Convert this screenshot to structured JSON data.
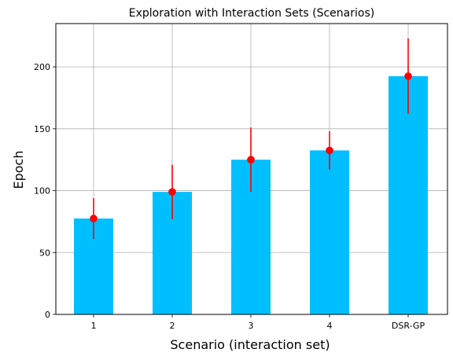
{
  "chart_data": {
    "type": "bar",
    "title": "Exploration with Interaction Sets (Scenarios)",
    "xlabel": "Scenario (interaction set)",
    "ylabel": "Epoch",
    "categories": [
      "1",
      "2",
      "3",
      "4",
      "DSR-GP"
    ],
    "values": [
      77.5,
      99,
      125,
      132.5,
      192.5
    ],
    "error_bars": [
      {
        "low": 61,
        "high": 94
      },
      {
        "low": 77,
        "high": 121
      },
      {
        "low": 99,
        "high": 151
      },
      {
        "low": 117,
        "high": 148
      },
      {
        "low": 162,
        "high": 223
      }
    ],
    "ylim": [
      0,
      235
    ],
    "yticks": [
      0,
      50,
      100,
      150,
      200
    ],
    "grid": true,
    "bar_color": "#00bfff",
    "marker_color": "#ff0000",
    "error_color": "#ff0000"
  }
}
